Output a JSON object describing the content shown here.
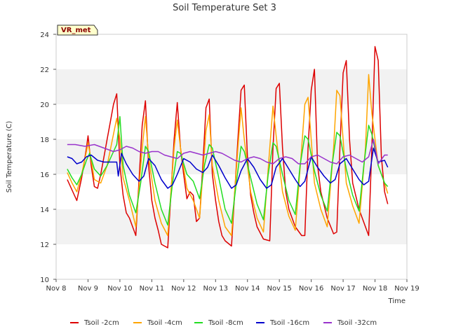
{
  "chart_data": {
    "type": "line",
    "title": "Soil Temperature Set 3",
    "xlabel": "Time",
    "ylabel": "Soil Temperature (C)",
    "ylim": [
      10,
      24
    ],
    "yticks": [
      10,
      12,
      14,
      16,
      18,
      20,
      22,
      24
    ],
    "xlim": [
      0,
      11
    ],
    "xtick_values": [
      0,
      1,
      2,
      3,
      4,
      5,
      6,
      7,
      8,
      9,
      10,
      11
    ],
    "xticks": [
      "Nov 8",
      "Nov 9",
      "Nov 10",
      "Nov 11",
      "Nov 12",
      "Nov 13",
      "Nov 14",
      "Nov 15",
      "Nov 16",
      "Nov 17",
      "Nov 18",
      "Nov 19"
    ],
    "grid": "horizontal bands",
    "legend_position": "bottom",
    "station_label": "VR_met",
    "series": [
      {
        "name": "Tsoil -2cm",
        "color": "#dd0000",
        "x": [
          0.35,
          0.5,
          0.65,
          0.8,
          0.95,
          1.0,
          1.1,
          1.2,
          1.3,
          1.4,
          1.5,
          1.6,
          1.7,
          1.8,
          1.9,
          2.0,
          2.1,
          2.2,
          2.3,
          2.5,
          2.7,
          2.8,
          2.9,
          3.0,
          3.1,
          3.2,
          3.3,
          3.5,
          3.7,
          3.8,
          3.9,
          4.0,
          4.1,
          4.2,
          4.3,
          4.4,
          4.5,
          4.6,
          4.7,
          4.8,
          4.9,
          5.0,
          5.1,
          5.2,
          5.3,
          5.5,
          5.7,
          5.8,
          5.9,
          6.0,
          6.1,
          6.2,
          6.3,
          6.5,
          6.7,
          6.8,
          6.9,
          7.0,
          7.1,
          7.2,
          7.3,
          7.5,
          7.7,
          7.8,
          7.9,
          8.0,
          8.1,
          8.2,
          8.3,
          8.5,
          8.7,
          8.8,
          8.9,
          9.0,
          9.1,
          9.2,
          9.3,
          9.5,
          9.7,
          9.8,
          9.9,
          10.0,
          10.1,
          10.2,
          10.3,
          10.4
        ],
        "values": [
          15.7,
          15.1,
          14.5,
          15.8,
          17.5,
          18.2,
          16.5,
          15.3,
          15.2,
          16.0,
          17.0,
          18.0,
          19.0,
          20.0,
          20.6,
          16.5,
          14.8,
          13.8,
          13.5,
          12.5,
          18.8,
          20.2,
          16.5,
          14.5,
          13.5,
          12.8,
          12.0,
          11.8,
          18.0,
          20.1,
          17.5,
          16.0,
          14.6,
          15.0,
          14.8,
          13.3,
          13.5,
          16.5,
          19.8,
          20.3,
          16.0,
          14.5,
          13.3,
          12.5,
          12.2,
          11.9,
          18.0,
          20.8,
          21.1,
          17.0,
          14.8,
          13.8,
          13.0,
          12.3,
          12.2,
          17.5,
          20.9,
          21.2,
          17.5,
          15.0,
          14.0,
          13.0,
          12.5,
          12.5,
          17.5,
          20.8,
          22.0,
          16.5,
          15.0,
          13.5,
          12.6,
          12.7,
          17.5,
          21.8,
          22.5,
          18.0,
          15.5,
          14.0,
          13.0,
          12.5,
          17.5,
          23.3,
          22.5,
          17.0,
          15.0,
          14.3
        ]
      },
      {
        "name": "Tsoil -4cm",
        "color": "#ffa500",
        "x": [
          0.35,
          0.5,
          0.65,
          0.8,
          0.95,
          1.0,
          1.1,
          1.2,
          1.4,
          1.6,
          1.8,
          1.9,
          2.0,
          2.1,
          2.3,
          2.5,
          2.7,
          2.8,
          2.9,
          3.1,
          3.3,
          3.5,
          3.7,
          3.8,
          3.9,
          4.1,
          4.3,
          4.5,
          4.7,
          4.8,
          4.9,
          5.1,
          5.3,
          5.5,
          5.7,
          5.8,
          5.9,
          6.1,
          6.3,
          6.5,
          6.7,
          6.8,
          6.9,
          7.1,
          7.3,
          7.5,
          7.7,
          7.8,
          7.9,
          8.1,
          8.3,
          8.5,
          8.7,
          8.8,
          8.9,
          9.1,
          9.3,
          9.5,
          9.7,
          9.8,
          9.9,
          10.1,
          10.3,
          10.4
        ],
        "values": [
          16.1,
          15.5,
          15.0,
          16.0,
          17.3,
          17.8,
          16.8,
          15.7,
          15.5,
          16.5,
          18.3,
          19.2,
          18.0,
          15.8,
          14.5,
          13.0,
          17.5,
          19.3,
          17.0,
          14.5,
          13.2,
          12.5,
          17.5,
          19.1,
          17.5,
          15.2,
          14.5,
          13.5,
          18.5,
          19.4,
          16.5,
          14.5,
          13.0,
          12.5,
          17.5,
          19.8,
          18.0,
          15.0,
          13.5,
          12.7,
          17.5,
          19.9,
          18.2,
          15.0,
          13.6,
          12.8,
          17.5,
          20.0,
          20.4,
          15.5,
          14.0,
          13.0,
          17.5,
          20.8,
          20.5,
          15.5,
          14.2,
          13.2,
          17.5,
          21.7,
          19.5,
          16.5,
          15.5,
          14.9
        ]
      },
      {
        "name": "Tsoil -8cm",
        "color": "#22dd22",
        "x": [
          0.35,
          0.5,
          0.65,
          0.8,
          0.95,
          1.05,
          1.2,
          1.4,
          1.6,
          1.8,
          1.9,
          2.0,
          2.1,
          2.3,
          2.5,
          2.65,
          2.8,
          2.9,
          3.1,
          3.3,
          3.5,
          3.65,
          3.8,
          3.9,
          4.1,
          4.3,
          4.5,
          4.65,
          4.8,
          4.9,
          5.1,
          5.3,
          5.5,
          5.65,
          5.8,
          5.9,
          6.1,
          6.3,
          6.5,
          6.65,
          6.8,
          6.9,
          7.1,
          7.3,
          7.5,
          7.65,
          7.8,
          7.9,
          8.1,
          8.3,
          8.5,
          8.65,
          8.8,
          8.9,
          9.1,
          9.3,
          9.5,
          9.65,
          9.8,
          9.9,
          10.1,
          10.3,
          10.4
        ],
        "values": [
          16.3,
          15.8,
          15.4,
          16.0,
          16.8,
          17.2,
          16.3,
          15.9,
          16.5,
          17.3,
          17.7,
          19.3,
          16.5,
          14.8,
          13.8,
          15.5,
          17.6,
          17.3,
          15.5,
          14.0,
          13.1,
          15.5,
          17.3,
          17.2,
          16.0,
          15.6,
          14.6,
          16.5,
          17.7,
          17.5,
          15.8,
          14.0,
          13.2,
          15.5,
          17.6,
          17.3,
          15.8,
          14.3,
          13.4,
          16.0,
          17.8,
          17.6,
          16.0,
          14.5,
          13.7,
          16.5,
          18.2,
          18.0,
          16.2,
          14.8,
          13.9,
          16.5,
          18.4,
          18.2,
          16.3,
          14.8,
          13.9,
          16.5,
          18.8,
          18.3,
          16.5,
          15.5,
          15.3
        ]
      },
      {
        "name": "Tsoil -16cm",
        "color": "#0000cc",
        "x": [
          0.35,
          0.5,
          0.65,
          0.8,
          0.95,
          1.1,
          1.3,
          1.5,
          1.7,
          1.9,
          1.95,
          2.05,
          2.2,
          2.4,
          2.6,
          2.75,
          2.9,
          3.1,
          3.3,
          3.5,
          3.65,
          3.8,
          4.0,
          4.2,
          4.4,
          4.6,
          4.75,
          4.9,
          5.1,
          5.3,
          5.5,
          5.65,
          5.8,
          6.0,
          6.2,
          6.4,
          6.6,
          6.75,
          6.9,
          7.1,
          7.3,
          7.5,
          7.65,
          7.8,
          8.0,
          8.2,
          8.4,
          8.6,
          8.75,
          8.9,
          9.1,
          9.3,
          9.5,
          9.65,
          9.8,
          9.95,
          10.1,
          10.3,
          10.4
        ],
        "values": [
          17.0,
          16.9,
          16.6,
          16.7,
          17.0,
          17.1,
          16.8,
          16.7,
          16.7,
          16.7,
          15.9,
          17.2,
          16.6,
          16.0,
          15.6,
          15.9,
          16.9,
          16.5,
          15.7,
          15.2,
          15.4,
          16.0,
          16.9,
          16.7,
          16.3,
          16.1,
          16.4,
          17.1,
          16.5,
          15.8,
          15.2,
          15.4,
          16.2,
          16.9,
          16.4,
          15.7,
          15.2,
          15.4,
          16.4,
          16.9,
          16.3,
          15.7,
          15.3,
          15.6,
          17.0,
          16.4,
          15.9,
          15.5,
          15.7,
          16.6,
          16.9,
          16.3,
          15.7,
          15.4,
          15.6,
          17.5,
          16.7,
          16.8,
          16.4
        ]
      },
      {
        "name": "Tsoil -32cm",
        "color": "#9933cc",
        "x": [
          0.35,
          0.6,
          0.9,
          1.2,
          1.5,
          1.8,
          2.0,
          2.2,
          2.4,
          2.6,
          2.8,
          3.0,
          3.2,
          3.4,
          3.6,
          3.8,
          4.0,
          4.2,
          4.4,
          4.6,
          4.8,
          5.0,
          5.2,
          5.4,
          5.6,
          5.8,
          6.0,
          6.2,
          6.4,
          6.6,
          6.8,
          7.0,
          7.2,
          7.4,
          7.6,
          7.8,
          8.0,
          8.2,
          8.4,
          8.6,
          8.8,
          9.0,
          9.2,
          9.4,
          9.6,
          9.8,
          9.95,
          10.1,
          10.3,
          10.4
        ],
        "values": [
          17.7,
          17.7,
          17.6,
          17.7,
          17.5,
          17.3,
          17.4,
          17.6,
          17.5,
          17.3,
          17.2,
          17.3,
          17.3,
          17.1,
          17.0,
          16.9,
          17.2,
          17.3,
          17.2,
          17.1,
          17.2,
          17.3,
          17.2,
          17.0,
          16.8,
          16.7,
          16.9,
          17.0,
          16.9,
          16.7,
          16.6,
          16.9,
          17.0,
          16.9,
          16.6,
          16.6,
          17.0,
          17.1,
          16.9,
          16.7,
          16.6,
          17.0,
          17.1,
          16.9,
          16.7,
          17.0,
          18.0,
          16.6,
          17.1,
          17.1
        ]
      }
    ]
  }
}
